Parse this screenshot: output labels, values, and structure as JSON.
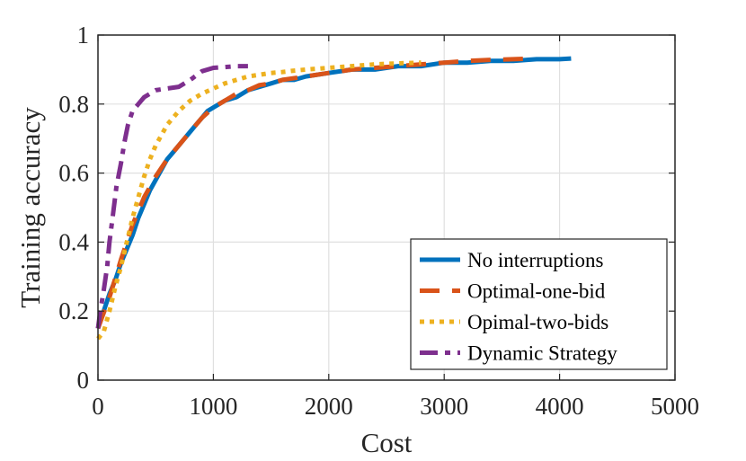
{
  "chart_data": {
    "type": "line",
    "title": "",
    "xlabel": "Cost",
    "ylabel": "Training accuracy",
    "xlim": [
      0,
      5000
    ],
    "ylim": [
      0,
      1
    ],
    "xticks": [
      0,
      1000,
      2000,
      3000,
      4000,
      5000
    ],
    "yticks": [
      0,
      0.2,
      0.4,
      0.6,
      0.8,
      1
    ],
    "xtick_labels": [
      "0",
      "1000",
      "2000",
      "3000",
      "4000",
      "5000"
    ],
    "ytick_labels": [
      "0",
      "0.2",
      "0.4",
      "0.6",
      "0.8",
      "1"
    ],
    "grid": true,
    "legend_position": "bottom-right",
    "series": [
      {
        "name": "No interruptions",
        "color": "#0072BD",
        "style": "solid",
        "points": [
          [
            0,
            0.15
          ],
          [
            50,
            0.2
          ],
          [
            100,
            0.25
          ],
          [
            150,
            0.29
          ],
          [
            200,
            0.34
          ],
          [
            250,
            0.38
          ],
          [
            300,
            0.42
          ],
          [
            350,
            0.47
          ],
          [
            400,
            0.51
          ],
          [
            450,
            0.55
          ],
          [
            500,
            0.58
          ],
          [
            550,
            0.61
          ],
          [
            600,
            0.64
          ],
          [
            650,
            0.66
          ],
          [
            700,
            0.68
          ],
          [
            750,
            0.7
          ],
          [
            800,
            0.72
          ],
          [
            850,
            0.74
          ],
          [
            900,
            0.76
          ],
          [
            950,
            0.78
          ],
          [
            1000,
            0.79
          ],
          [
            1100,
            0.81
          ],
          [
            1200,
            0.82
          ],
          [
            1300,
            0.84
          ],
          [
            1400,
            0.85
          ],
          [
            1500,
            0.86
          ],
          [
            1600,
            0.87
          ],
          [
            1700,
            0.87
          ],
          [
            1800,
            0.88
          ],
          [
            2000,
            0.89
          ],
          [
            2200,
            0.9
          ],
          [
            2400,
            0.9
          ],
          [
            2600,
            0.91
          ],
          [
            2800,
            0.91
          ],
          [
            3000,
            0.92
          ],
          [
            3200,
            0.92
          ],
          [
            3400,
            0.925
          ],
          [
            3600,
            0.925
          ],
          [
            3800,
            0.93
          ],
          [
            3900,
            0.93
          ],
          [
            4000,
            0.93
          ],
          [
            4100,
            0.932
          ]
        ]
      },
      {
        "name": "Optimal-one-bid",
        "color": "#D95319",
        "style": "dashed",
        "points": [
          [
            0,
            0.15
          ],
          [
            100,
            0.24
          ],
          [
            200,
            0.35
          ],
          [
            300,
            0.45
          ],
          [
            400,
            0.53
          ],
          [
            500,
            0.59
          ],
          [
            600,
            0.64
          ],
          [
            700,
            0.68
          ],
          [
            800,
            0.72
          ],
          [
            900,
            0.76
          ],
          [
            1000,
            0.79
          ],
          [
            1100,
            0.81
          ],
          [
            1200,
            0.83
          ],
          [
            1300,
            0.84
          ],
          [
            1400,
            0.855
          ],
          [
            1500,
            0.86
          ],
          [
            1600,
            0.87
          ],
          [
            1800,
            0.88
          ],
          [
            2000,
            0.89
          ],
          [
            2200,
            0.9
          ],
          [
            2400,
            0.905
          ],
          [
            2600,
            0.91
          ],
          [
            2800,
            0.915
          ],
          [
            3000,
            0.92
          ],
          [
            3200,
            0.925
          ],
          [
            3400,
            0.928
          ],
          [
            3600,
            0.93
          ],
          [
            3750,
            0.932
          ]
        ]
      },
      {
        "name": "Opimal-two-bids",
        "color": "#EDB120",
        "style": "dotted",
        "points": [
          [
            0,
            0.12
          ],
          [
            50,
            0.14
          ],
          [
            100,
            0.2
          ],
          [
            150,
            0.27
          ],
          [
            200,
            0.33
          ],
          [
            250,
            0.4
          ],
          [
            300,
            0.47
          ],
          [
            350,
            0.53
          ],
          [
            400,
            0.59
          ],
          [
            450,
            0.64
          ],
          [
            500,
            0.68
          ],
          [
            550,
            0.71
          ],
          [
            600,
            0.74
          ],
          [
            650,
            0.76
          ],
          [
            700,
            0.78
          ],
          [
            800,
            0.81
          ],
          [
            900,
            0.83
          ],
          [
            1000,
            0.845
          ],
          [
            1100,
            0.86
          ],
          [
            1200,
            0.87
          ],
          [
            1300,
            0.88
          ],
          [
            1400,
            0.885
          ],
          [
            1500,
            0.89
          ],
          [
            1600,
            0.893
          ],
          [
            1700,
            0.897
          ],
          [
            1800,
            0.9
          ],
          [
            2000,
            0.905
          ],
          [
            2200,
            0.91
          ],
          [
            2400,
            0.915
          ],
          [
            2600,
            0.918
          ],
          [
            2800,
            0.92
          ]
        ]
      },
      {
        "name": "Dynamic Strategy",
        "color": "#7E2F8E",
        "style": "dashdot",
        "points": [
          [
            0,
            0.15
          ],
          [
            20,
            0.2
          ],
          [
            50,
            0.26
          ],
          [
            80,
            0.33
          ],
          [
            100,
            0.4
          ],
          [
            130,
            0.48
          ],
          [
            160,
            0.56
          ],
          [
            200,
            0.63
          ],
          [
            230,
            0.69
          ],
          [
            260,
            0.74
          ],
          [
            300,
            0.78
          ],
          [
            350,
            0.8
          ],
          [
            400,
            0.82
          ],
          [
            450,
            0.83
          ],
          [
            500,
            0.84
          ],
          [
            600,
            0.845
          ],
          [
            700,
            0.85
          ],
          [
            800,
            0.87
          ],
          [
            900,
            0.895
          ],
          [
            1000,
            0.905
          ],
          [
            1100,
            0.907
          ],
          [
            1200,
            0.91
          ],
          [
            1300,
            0.91
          ]
        ]
      }
    ]
  }
}
